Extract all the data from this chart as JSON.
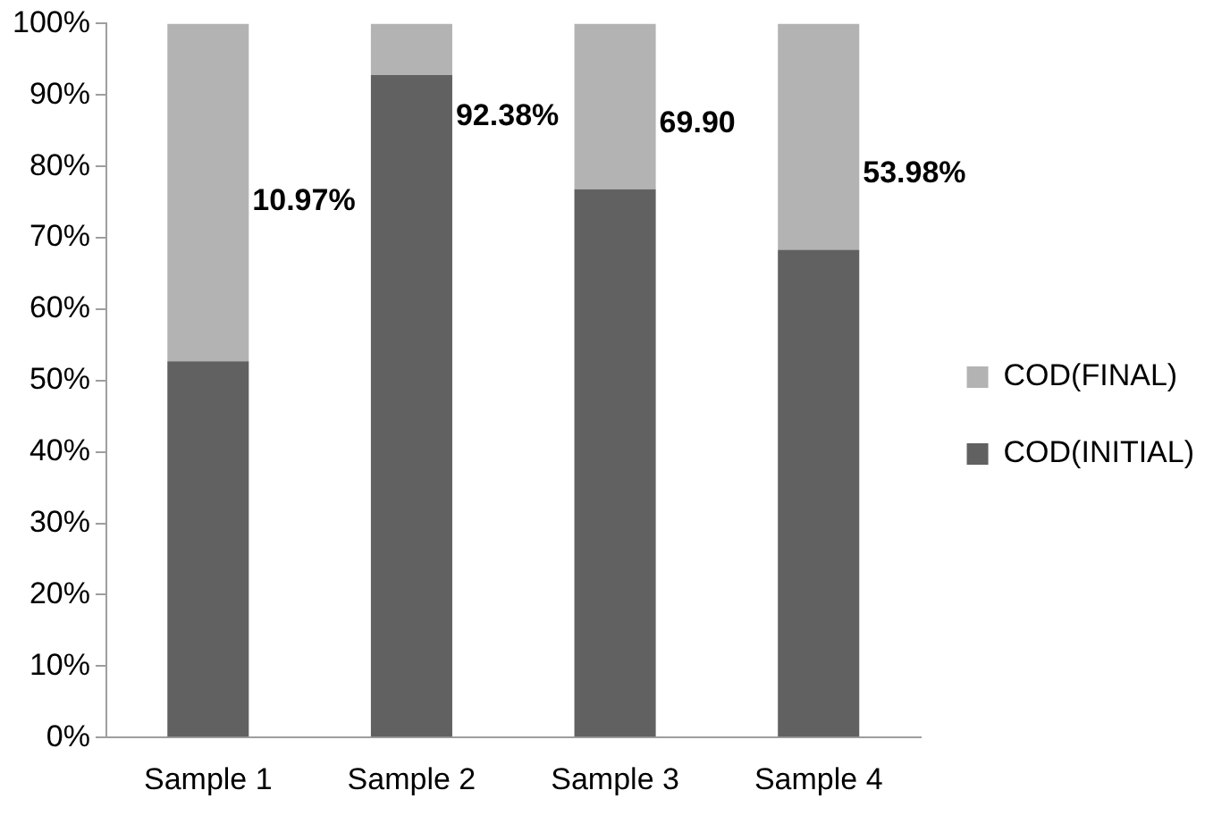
{
  "chart_data": {
    "type": "bar",
    "stacked": true,
    "categories": [
      "Sample 1",
      "Sample 2",
      "Sample 3",
      "Sample 4"
    ],
    "series": [
      {
        "name": "COD(INITIAL)",
        "color": "#616161",
        "values": [
          52.7,
          92.8,
          76.8,
          68.3
        ]
      },
      {
        "name": "COD(FINAL)",
        "color": "#b3b3b3",
        "values": [
          47.3,
          7.2,
          23.2,
          31.7
        ]
      }
    ],
    "ylim": [
      0,
      100
    ],
    "yticks": [
      {
        "value": 0,
        "label": "0%"
      },
      {
        "value": 10,
        "label": "10%"
      },
      {
        "value": 20,
        "label": "20%"
      },
      {
        "value": 30,
        "label": "30%"
      },
      {
        "value": 40,
        "label": "40%"
      },
      {
        "value": 50,
        "label": "50%"
      },
      {
        "value": 60,
        "label": "60%"
      },
      {
        "value": 70,
        "label": "70%"
      },
      {
        "value": 80,
        "label": "80%"
      },
      {
        "value": 90,
        "label": "90%"
      },
      {
        "value": 100,
        "label": "100%"
      }
    ],
    "grid": false,
    "legend": "right",
    "annotations": [
      "10.97%",
      "92.38%",
      "69.90",
      "53.98%"
    ]
  }
}
